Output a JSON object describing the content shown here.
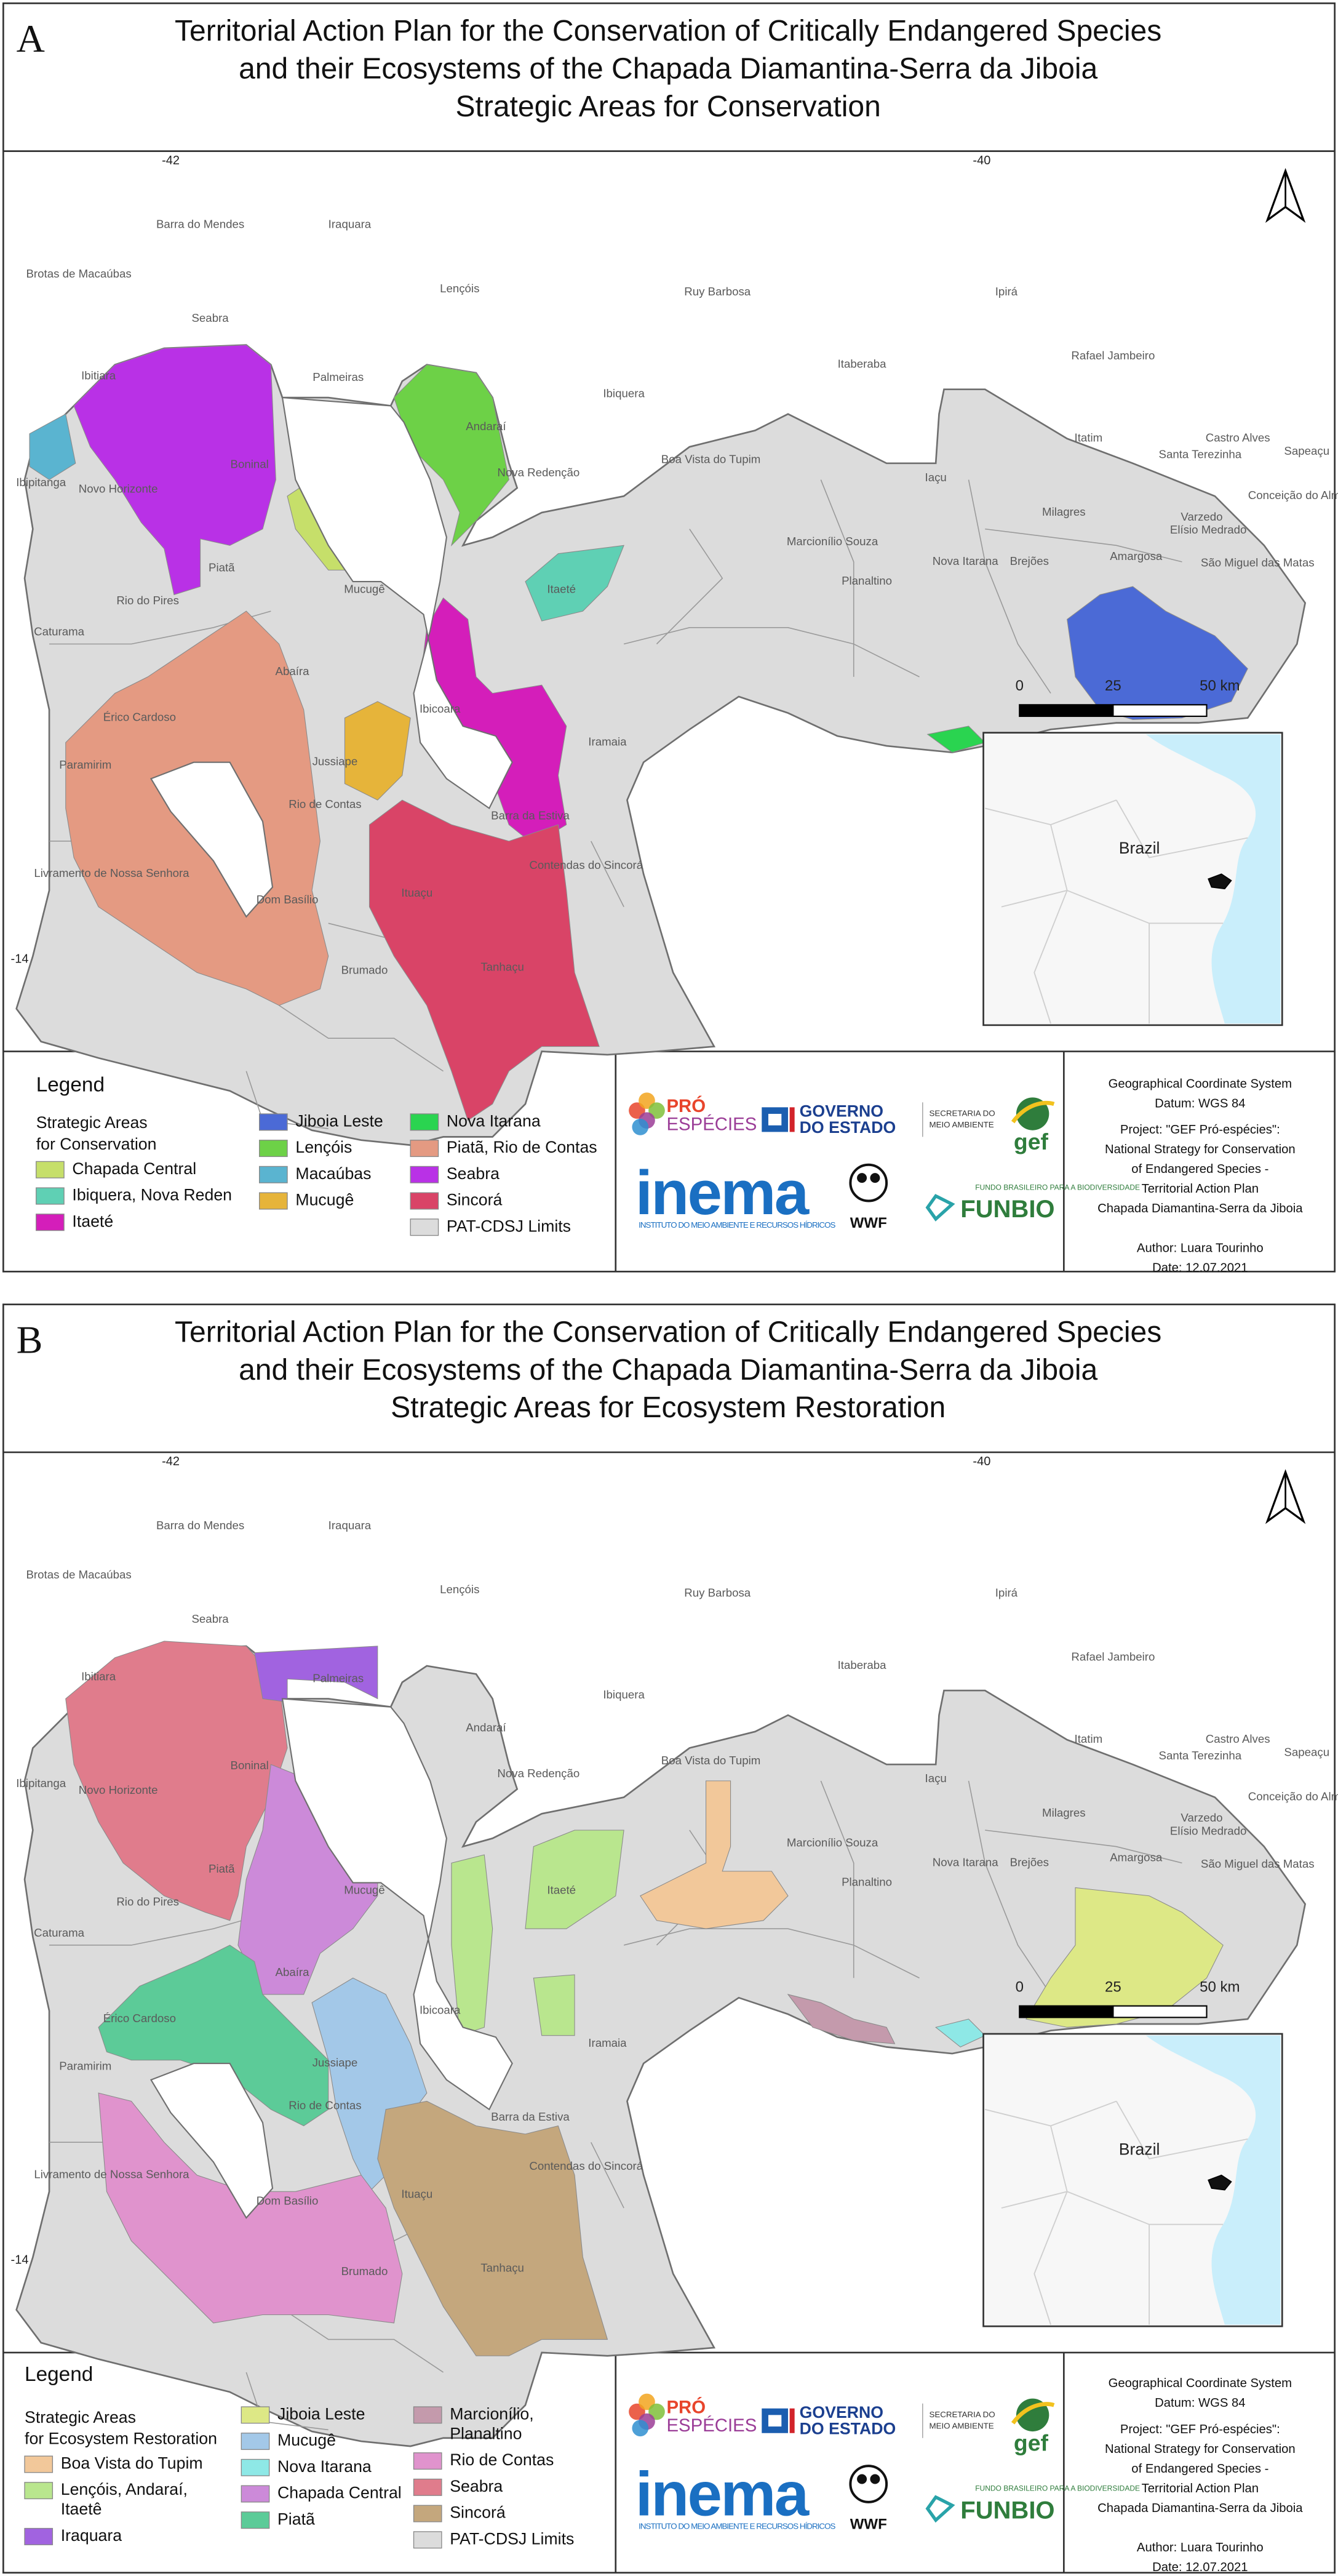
{
  "panels": [
    {
      "letter": "A",
      "title": [
        "Territorial Action Plan for the Conservation of Critically Endangered Species",
        "and their Ecosystems of the Chapada Diamantina-Serra da Jiboia",
        "Strategic Areas for Conservation"
      ],
      "coords": {
        "lon_left": "-42",
        "lon_right": "-40",
        "lat": "-14"
      },
      "towns": [
        "Barra do Mendes",
        "Brotas de Macaúbas",
        "Seabra",
        "Ibitiara",
        "Iraquara",
        "Lençóis",
        "Palmeiras",
        "Andaraí",
        "Nova Redenção",
        "Ibiquera",
        "Ruy Barbosa",
        "Ipirá",
        "Itaberaba",
        "Rafael Jambeiro",
        "Boa Vista do Tupim",
        "Iaçu",
        "Itatim",
        "Santa Terezinha",
        "Castro Alves",
        "Sapeaçu",
        "Conceição do Almeida",
        "Milagres",
        "Varzedo",
        "Elísio Medrado",
        "Amargosa",
        "São Miguel das Matas",
        "Marcionílio Souza",
        "Planaltino",
        "Nova Itarana",
        "Brejões",
        "Ibipitanga",
        "Novo Horizonte",
        "Boninal",
        "Piatã",
        "Rio do Pires",
        "Mucugê",
        "Itaeté",
        "Caturama",
        "Abaíra",
        "Érico Cardoso",
        "Ibicoara",
        "Iramaia",
        "Jussiape",
        "Paramirim",
        "Rio de Contas",
        "Barra da Estiva",
        "Contendas do Sincorá",
        "Livramento de Nossa Senhora",
        "Dom Basílio",
        "Ituaçu",
        "Brumado",
        "Tanhaçu"
      ],
      "scale": [
        "0",
        "25",
        "50 km"
      ],
      "inset_label": "Brazil",
      "legend": {
        "heading": "Legend",
        "subtitle": [
          "Strategic Areas",
          "for Conservation"
        ],
        "items": [
          {
            "label": [
              "Chapada Central"
            ],
            "color": "#c6df6a"
          },
          {
            "label": [
              "Ibiquera, Nova Reden"
            ],
            "color": "#5fd0b4"
          },
          {
            "label": [
              "Itaeté"
            ],
            "color": "#d41eba"
          },
          {
            "label": [
              "Jiboia Leste"
            ],
            "color": "#4b6ad6"
          },
          {
            "label": [
              "Lençóis"
            ],
            "color": "#6dd147"
          },
          {
            "label": [
              "Macaúbas"
            ],
            "color": "#5ab4d0"
          },
          {
            "label": [
              "Mucugê"
            ],
            "color": "#e6b43a"
          },
          {
            "label": [
              "Nova Itarana"
            ],
            "color": "#2ad450"
          },
          {
            "label": [
              "Piatã, Rio de Contas"
            ],
            "color": "#e49a82"
          },
          {
            "label": [
              "Seabra"
            ],
            "color": "#b931e6"
          },
          {
            "label": [
              "Sincorá"
            ],
            "color": "#d94467"
          },
          {
            "label": [
              "PAT-CDSJ Limits"
            ],
            "color": "#dcdcdc"
          }
        ]
      }
    },
    {
      "letter": "B",
      "title": [
        "Territorial Action Plan for the Conservation of Critically Endangered Species",
        "and their Ecosystems of the Chapada Diamantina-Serra da Jiboia",
        "Strategic Areas for Ecosystem Restoration"
      ],
      "coords": {
        "lon_left": "-42",
        "lon_right": "-40",
        "lat": "-14"
      },
      "towns": [
        "Barra do Mendes",
        "Brotas de Macaúbas",
        "Seabra",
        "Ibitiara",
        "Iraquara",
        "Lençóis",
        "Palmeiras",
        "Andaraí",
        "Nova Redenção",
        "Ibiquera",
        "Ruy Barbosa",
        "Ipirá",
        "Itaberaba",
        "Rafael Jambeiro",
        "Boa Vista do Tupim",
        "Iaçu",
        "Itatim",
        "Santa Terezinha",
        "Castro Alves",
        "Sapeaçu",
        "Conceição do Almeida",
        "Milagres",
        "Varzedo",
        "Elísio Medrado",
        "Amargosa",
        "São Miguel das Matas",
        "Marcionílio Souza",
        "Planaltino",
        "Nova Itarana",
        "Brejões",
        "Ibipitanga",
        "Novo Horizonte",
        "Boninal",
        "Piatã",
        "Rio do Pires",
        "Mucugê",
        "Itaeté",
        "Caturama",
        "Abaíra",
        "Érico Cardoso",
        "Ibicoara",
        "Iramaia",
        "Jussiape",
        "Paramirim",
        "Rio de Contas",
        "Barra da Estiva",
        "Contendas do Sincorá",
        "Livramento de Nossa Senhora",
        "Dom Basílio",
        "Ituaçu",
        "Brumado",
        "Tanhaçu"
      ],
      "scale": [
        "0",
        "25",
        "50 km"
      ],
      "inset_label": "Brazil",
      "legend": {
        "heading": "Legend",
        "subtitle": [
          "Strategic Areas",
          "for Ecosystem Restoration"
        ],
        "items": [
          {
            "label": [
              "Boa Vista do Tupim"
            ],
            "color": "#f2c89a"
          },
          {
            "label": [
              "Lençóis, Andaraí,",
              "Itaetê"
            ],
            "color": "#b9e68e"
          },
          {
            "label": [
              "Iraquara"
            ],
            "color": "#a163e0"
          },
          {
            "label": [
              "Jiboia Leste"
            ],
            "color": "#dde886"
          },
          {
            "label": [
              "Mucugê"
            ],
            "color": "#a3c8e8"
          },
          {
            "label": [
              "Nova Itarana"
            ],
            "color": "#8ee8e6"
          },
          {
            "label": [
              "Chapada Central"
            ],
            "color": "#cc8ad9"
          },
          {
            "label": [
              "Piatã"
            ],
            "color": "#5ccb98"
          },
          {
            "label": [
              "Marcionílio,",
              "Planaltino"
            ],
            "color": "#c49aac"
          },
          {
            "label": [
              "Rio de Contas"
            ],
            "color": "#e093cd"
          },
          {
            "label": [
              "Seabra"
            ],
            "color": "#e07c8c"
          },
          {
            "label": [
              "Sincorá"
            ],
            "color": "#c4a77d"
          },
          {
            "label": [
              "PAT-CDSJ Limits"
            ],
            "color": "#dcdcdc"
          }
        ]
      }
    }
  ],
  "logos": {
    "pro": "PRÓ",
    "especies": "ESPÉCIES",
    "governo": [
      "GOVERNO",
      "DO ESTADO"
    ],
    "secretaria": [
      "SECRETARIA DO",
      "MEIO AMBIENTE"
    ],
    "gef": "gef",
    "inema": "inema",
    "inema_sub": "INSTITUTO DO MEIO AMBIENTE E RECURSOS HÍDRICOS",
    "wwf": "WWF",
    "funbio_sub": "FUNDO BRASILEIRO PARA A BIODIVERSIDADE",
    "funbio": "FUNBIO"
  },
  "info": {
    "crs": [
      "Geographical Coordinate System",
      "Datum: WGS 84"
    ],
    "project": [
      "Project: \"GEF Pró-espécies\":",
      "National Strategy for Conservation",
      "of Endangered Species -",
      "Territorial Action Plan",
      "Chapada Diamantina-Serra da Jiboia"
    ],
    "author": [
      "Author: Luara Tourinho",
      "Date: 12.07.2021"
    ]
  }
}
